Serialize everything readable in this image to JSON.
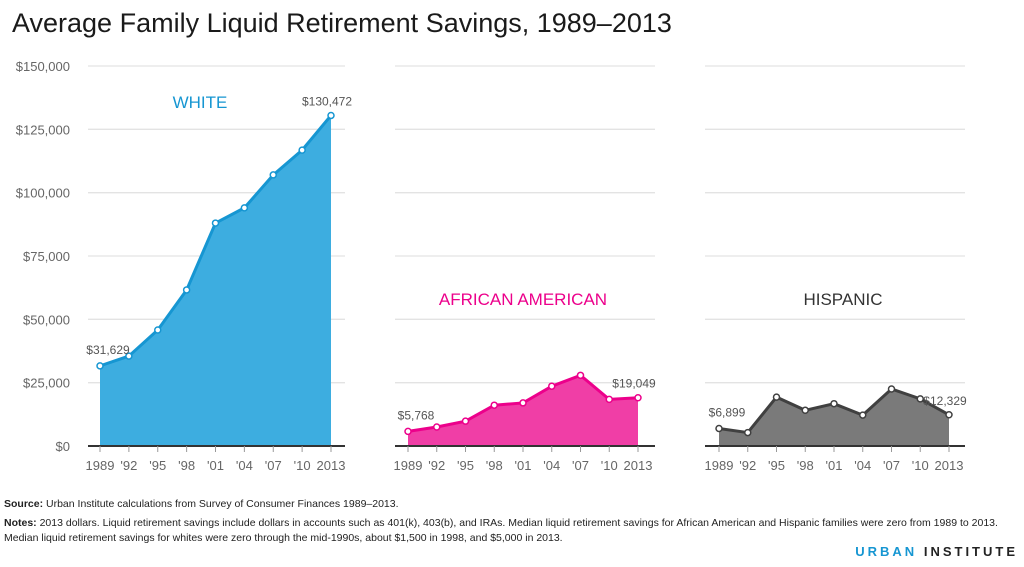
{
  "title": "Average Family Liquid Retirement Savings, 1989–2013",
  "chart_data": [
    {
      "type": "area",
      "title": "WHITE",
      "color": "#1696d2",
      "fill": "#3dade0",
      "categories": [
        "1989",
        "'92",
        "'95",
        "'98",
        "'01",
        "'04",
        "'07",
        "'10",
        "2013"
      ],
      "values": [
        31629,
        35500,
        45800,
        61600,
        88000,
        94000,
        107000,
        116800,
        130472
      ],
      "labels": {
        "first": "$31,629",
        "last": "$130,472"
      },
      "ylim": [
        0,
        150000
      ],
      "yticks": [
        "$0",
        "$25,000",
        "$50,000",
        "$75,000",
        "$100,000",
        "$125,000",
        "$150,000"
      ],
      "grid": true
    },
    {
      "type": "area",
      "title": "AFRICAN AMERICAN",
      "color": "#ec008b",
      "fill": "#f03ea6",
      "categories": [
        "1989",
        "'92",
        "'95",
        "'98",
        "'01",
        "'04",
        "'07",
        "'10",
        "2013"
      ],
      "values": [
        5768,
        7500,
        9800,
        16100,
        17000,
        23600,
        27900,
        18400,
        19049
      ],
      "labels": {
        "first": "$5,768",
        "last": "$19,049"
      },
      "ylim": [
        0,
        150000
      ],
      "grid": true
    },
    {
      "type": "area",
      "title": "HISPANIC",
      "color": "#404040",
      "fill": "#7a7a7a",
      "categories": [
        "1989",
        "'92",
        "'95",
        "'98",
        "'01",
        "'04",
        "'07",
        "'10",
        "2013"
      ],
      "values": [
        6899,
        5300,
        19300,
        14100,
        16700,
        12200,
        22500,
        18600,
        12329
      ],
      "labels": {
        "first": "$6,899",
        "last": "$12,329"
      },
      "ylim": [
        0,
        150000
      ],
      "grid": true
    }
  ],
  "source_label": "Source:",
  "source": " Urban Institute calculations from Survey of Consumer Finances 1989–2013.",
  "notes_label": "Notes:",
  "notes": " 2013 dollars. Liquid retirement savings include dollars in accounts such as 401(k), 403(b), and IRAs. Median liquid retirement savings for African American and Hispanic families were zero from 1989 to 2013. Median liquid retirement savings for whites were zero through the mid-1990s, about $1,500 in 1998, and $5,000 in 2013.",
  "logo": {
    "a": "URBAN",
    "b": "INSTITUTE"
  }
}
